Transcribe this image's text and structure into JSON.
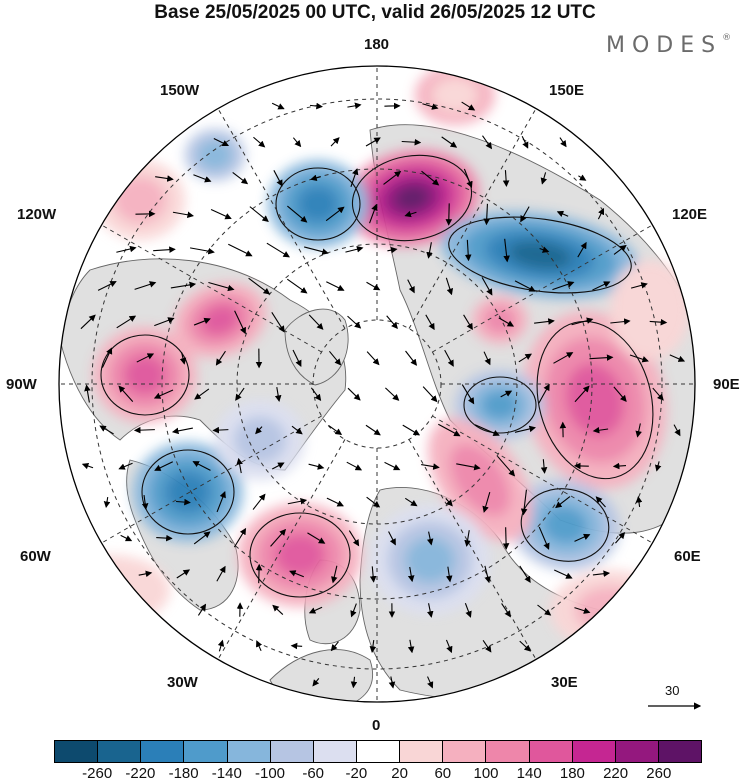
{
  "title": "Base 25/05/2025 00 UTC, valid 26/05/2025 12 UTC",
  "brand": "MODES",
  "brand_mark": "®",
  "longitude_labels": {
    "top": "180",
    "top_left": "150W",
    "top_right": "150E",
    "upper_left": "120W",
    "upper_right": "120E",
    "left": "90W",
    "right": "90E",
    "lower_left": "60W",
    "lower_right": "60E",
    "bottom_left": "30W",
    "bottom_right": "30E",
    "bottom": "0"
  },
  "reference_vector": {
    "value": "30"
  },
  "colorbar": {
    "ticks": [
      "-260",
      "-220",
      "-180",
      "-140",
      "-100",
      "-60",
      "-20",
      "20",
      "60",
      "100",
      "140",
      "180",
      "220",
      "260"
    ],
    "colors": [
      "#0d4a6e",
      "#19648f",
      "#2b7fb8",
      "#4f9bcb",
      "#86b6dc",
      "#b6c5e3",
      "#dcdff0",
      "#ffffff",
      "#f9d6d6",
      "#f5b0bf",
      "#ee86aa",
      "#e0579c",
      "#c52692",
      "#94187e",
      "#5e1366"
    ]
  },
  "map_colors": {
    "land": "#e0e0e0",
    "land_outline": "#666666"
  }
}
